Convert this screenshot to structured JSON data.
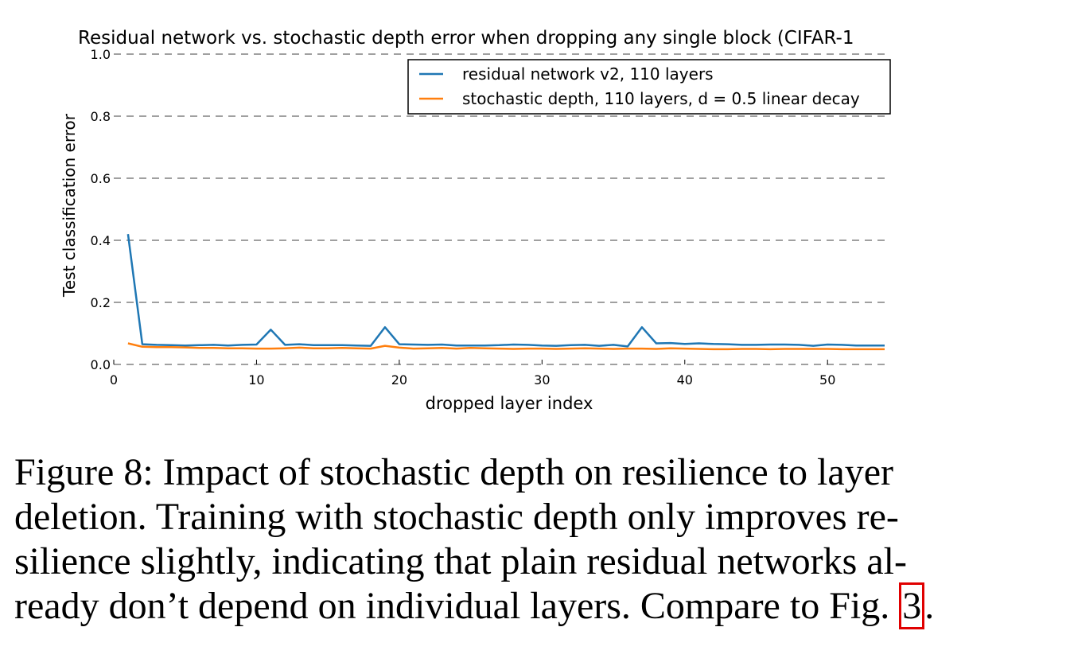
{
  "chart_data": {
    "type": "line",
    "title": "Residual network vs. stochastic depth error when dropping any single block (CIFAR-1",
    "xlabel": "dropped layer index",
    "ylabel": "Test classification error",
    "xlim": [
      0,
      54
    ],
    "ylim": [
      0,
      1.0
    ],
    "xticks": [
      0,
      10,
      20,
      30,
      40,
      50
    ],
    "yticks": [
      "0.0",
      "0.2",
      "0.4",
      "0.6",
      "0.8",
      "1.0"
    ],
    "grid": "horizontal dashed",
    "legend_position": "top-right",
    "x": [
      1,
      2,
      3,
      4,
      5,
      6,
      7,
      8,
      9,
      10,
      11,
      12,
      13,
      14,
      15,
      16,
      17,
      18,
      19,
      20,
      21,
      22,
      23,
      24,
      25,
      26,
      27,
      28,
      29,
      30,
      31,
      32,
      33,
      34,
      35,
      36,
      37,
      38,
      39,
      40,
      41,
      42,
      43,
      44,
      45,
      46,
      47,
      48,
      49,
      50,
      51,
      52,
      53,
      54
    ],
    "series": [
      {
        "name": "residual network v2, 110 layers",
        "color": "#1f77b4",
        "values": [
          0.42,
          0.065,
          0.063,
          0.062,
          0.061,
          0.062,
          0.063,
          0.061,
          0.063,
          0.064,
          0.112,
          0.063,
          0.065,
          0.062,
          0.062,
          0.062,
          0.061,
          0.06,
          0.12,
          0.065,
          0.064,
          0.063,
          0.064,
          0.061,
          0.061,
          0.061,
          0.062,
          0.064,
          0.063,
          0.061,
          0.06,
          0.062,
          0.063,
          0.06,
          0.063,
          0.058,
          0.12,
          0.068,
          0.069,
          0.066,
          0.068,
          0.066,
          0.065,
          0.063,
          0.063,
          0.064,
          0.064,
          0.063,
          0.06,
          0.064,
          0.063,
          0.061,
          0.061,
          0.061
        ]
      },
      {
        "name": "stochastic depth, 110 layers, d = 0.5 linear decay",
        "color": "#ff7f0e",
        "values": [
          0.068,
          0.057,
          0.056,
          0.056,
          0.055,
          0.053,
          0.053,
          0.052,
          0.052,
          0.051,
          0.051,
          0.052,
          0.054,
          0.052,
          0.052,
          0.053,
          0.052,
          0.051,
          0.06,
          0.054,
          0.051,
          0.052,
          0.053,
          0.051,
          0.053,
          0.052,
          0.051,
          0.05,
          0.051,
          0.051,
          0.05,
          0.051,
          0.052,
          0.051,
          0.05,
          0.051,
          0.051,
          0.05,
          0.052,
          0.051,
          0.05,
          0.049,
          0.049,
          0.05,
          0.05,
          0.049,
          0.05,
          0.05,
          0.05,
          0.05,
          0.049,
          0.049,
          0.049,
          0.049
        ]
      }
    ]
  },
  "caption": {
    "line1": "Figure 8:  Impact of stochastic depth on resilience to layer",
    "line2": "deletion.  Training with stochastic depth only improves re-",
    "line3": "silience slightly, indicating that plain residual networks al-",
    "line4_pre": "ready don’t depend on individual layers. Compare to Fig. ",
    "line4_ref": "3",
    "line4_post": "."
  }
}
